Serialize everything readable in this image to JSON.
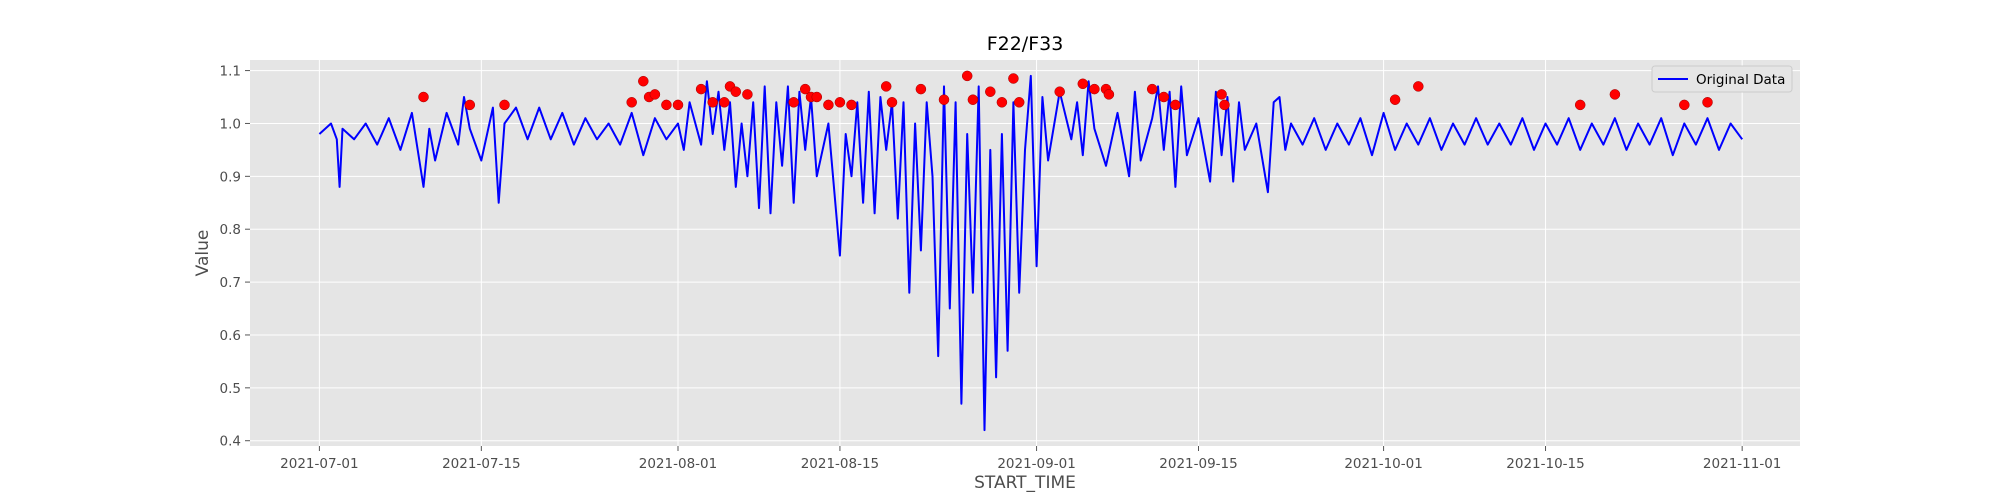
{
  "chart_data": {
    "type": "line",
    "title": "F22/F33",
    "xlabel": "START_TIME",
    "ylabel": "Value",
    "x_ticks": [
      "2021-07-01",
      "2021-07-15",
      "2021-08-01",
      "2021-08-15",
      "2021-09-01",
      "2021-09-15",
      "2021-10-01",
      "2021-10-15",
      "2021-11-01"
    ],
    "y_ticks": [
      "0.4",
      "0.5",
      "0.6",
      "0.7",
      "0.8",
      "0.9",
      "1.0",
      "1.1"
    ],
    "xlim": [
      "2021-06-25",
      "2021-11-06"
    ],
    "ylim": [
      0.39,
      1.12
    ],
    "grid": true,
    "legend_position": "top-right",
    "colors": {
      "line": "#0000ff",
      "marker": "#ff0000",
      "plot_bg": "#e5e5e5",
      "grid": "#ffffff"
    },
    "series": [
      {
        "name": "Original Data",
        "kind": "line",
        "points": [
          [
            "2021-07-01",
            0.98
          ],
          [
            "2021-07-02",
            1.0
          ],
          [
            "2021-07-02T12",
            0.97
          ],
          [
            "2021-07-02T18",
            0.88
          ],
          [
            "2021-07-03",
            0.99
          ],
          [
            "2021-07-04",
            0.97
          ],
          [
            "2021-07-05",
            1.0
          ],
          [
            "2021-07-06",
            0.96
          ],
          [
            "2021-07-07",
            1.01
          ],
          [
            "2021-07-08",
            0.95
          ],
          [
            "2021-07-09",
            1.02
          ],
          [
            "2021-07-10",
            0.88
          ],
          [
            "2021-07-10T12",
            0.99
          ],
          [
            "2021-07-11",
            0.93
          ],
          [
            "2021-07-12",
            1.02
          ],
          [
            "2021-07-13",
            0.96
          ],
          [
            "2021-07-13T12",
            1.05
          ],
          [
            "2021-07-14",
            0.99
          ],
          [
            "2021-07-15",
            0.93
          ],
          [
            "2021-07-16",
            1.03
          ],
          [
            "2021-07-16T12",
            0.85
          ],
          [
            "2021-07-17",
            1.0
          ],
          [
            "2021-07-18",
            1.03
          ],
          [
            "2021-07-19",
            0.97
          ],
          [
            "2021-07-20",
            1.03
          ],
          [
            "2021-07-21",
            0.97
          ],
          [
            "2021-07-22",
            1.02
          ],
          [
            "2021-07-23",
            0.96
          ],
          [
            "2021-07-24",
            1.01
          ],
          [
            "2021-07-25",
            0.97
          ],
          [
            "2021-07-26",
            1.0
          ],
          [
            "2021-07-27",
            0.96
          ],
          [
            "2021-07-28",
            1.02
          ],
          [
            "2021-07-29",
            0.94
          ],
          [
            "2021-07-30",
            1.01
          ],
          [
            "2021-07-31",
            0.97
          ],
          [
            "2021-08-01",
            1.0
          ],
          [
            "2021-08-01T12",
            0.95
          ],
          [
            "2021-08-02",
            1.04
          ],
          [
            "2021-08-03",
            0.96
          ],
          [
            "2021-08-03T12",
            1.08
          ],
          [
            "2021-08-04",
            0.98
          ],
          [
            "2021-08-04T12",
            1.06
          ],
          [
            "2021-08-05",
            0.95
          ],
          [
            "2021-08-05T12",
            1.04
          ],
          [
            "2021-08-06",
            0.88
          ],
          [
            "2021-08-06T12",
            1.0
          ],
          [
            "2021-08-07",
            0.9
          ],
          [
            "2021-08-07T12",
            1.04
          ],
          [
            "2021-08-08",
            0.84
          ],
          [
            "2021-08-08T12",
            1.07
          ],
          [
            "2021-08-09",
            0.83
          ],
          [
            "2021-08-09T12",
            1.04
          ],
          [
            "2021-08-10",
            0.92
          ],
          [
            "2021-08-10T12",
            1.07
          ],
          [
            "2021-08-11",
            0.85
          ],
          [
            "2021-08-11T12",
            1.06
          ],
          [
            "2021-08-12",
            0.95
          ],
          [
            "2021-08-12T12",
            1.05
          ],
          [
            "2021-08-13",
            0.9
          ],
          [
            "2021-08-14",
            1.0
          ],
          [
            "2021-08-15",
            0.75
          ],
          [
            "2021-08-15T12",
            0.98
          ],
          [
            "2021-08-16",
            0.9
          ],
          [
            "2021-08-16T12",
            1.04
          ],
          [
            "2021-08-17",
            0.85
          ],
          [
            "2021-08-17T12",
            1.06
          ],
          [
            "2021-08-18",
            0.83
          ],
          [
            "2021-08-18T12",
            1.05
          ],
          [
            "2021-08-19",
            0.95
          ],
          [
            "2021-08-19T12",
            1.04
          ],
          [
            "2021-08-20",
            0.82
          ],
          [
            "2021-08-20T12",
            1.04
          ],
          [
            "2021-08-21",
            0.68
          ],
          [
            "2021-08-21T12",
            1.0
          ],
          [
            "2021-08-22",
            0.76
          ],
          [
            "2021-08-22T12",
            1.04
          ],
          [
            "2021-08-23",
            0.9
          ],
          [
            "2021-08-23T12",
            0.56
          ],
          [
            "2021-08-24",
            1.07
          ],
          [
            "2021-08-24T12",
            0.65
          ],
          [
            "2021-08-25",
            1.04
          ],
          [
            "2021-08-25T12",
            0.47
          ],
          [
            "2021-08-26",
            0.98
          ],
          [
            "2021-08-26T12",
            0.68
          ],
          [
            "2021-08-27",
            1.07
          ],
          [
            "2021-08-27T12",
            0.42
          ],
          [
            "2021-08-28",
            0.95
          ],
          [
            "2021-08-28T12",
            0.52
          ],
          [
            "2021-08-29",
            0.98
          ],
          [
            "2021-08-29T12",
            0.57
          ],
          [
            "2021-08-30",
            1.04
          ],
          [
            "2021-08-30T12",
            0.68
          ],
          [
            "2021-08-31",
            0.95
          ],
          [
            "2021-08-31T12",
            1.09
          ],
          [
            "2021-09-01",
            0.73
          ],
          [
            "2021-09-01T12",
            1.05
          ],
          [
            "2021-09-02",
            0.93
          ],
          [
            "2021-09-03",
            1.06
          ],
          [
            "2021-09-04",
            0.97
          ],
          [
            "2021-09-04T12",
            1.04
          ],
          [
            "2021-09-05",
            0.94
          ],
          [
            "2021-09-05T12",
            1.08
          ],
          [
            "2021-09-06",
            0.99
          ],
          [
            "2021-09-07",
            0.92
          ],
          [
            "2021-09-08",
            1.02
          ],
          [
            "2021-09-09",
            0.9
          ],
          [
            "2021-09-09T12",
            1.06
          ],
          [
            "2021-09-10",
            0.93
          ],
          [
            "2021-09-11",
            1.01
          ],
          [
            "2021-09-11T12",
            1.07
          ],
          [
            "2021-09-12",
            0.95
          ],
          [
            "2021-09-12T12",
            1.06
          ],
          [
            "2021-09-13",
            0.88
          ],
          [
            "2021-09-13T12",
            1.07
          ],
          [
            "2021-09-14",
            0.94
          ],
          [
            "2021-09-15",
            1.01
          ],
          [
            "2021-09-16",
            0.89
          ],
          [
            "2021-09-16T12",
            1.06
          ],
          [
            "2021-09-17",
            0.94
          ],
          [
            "2021-09-17T12",
            1.05
          ],
          [
            "2021-09-18",
            0.89
          ],
          [
            "2021-09-18T12",
            1.04
          ],
          [
            "2021-09-19",
            0.95
          ],
          [
            "2021-09-20",
            1.0
          ],
          [
            "2021-09-21",
            0.87
          ],
          [
            "2021-09-21T12",
            1.04
          ],
          [
            "2021-09-22",
            1.05
          ],
          [
            "2021-09-22T12",
            0.95
          ],
          [
            "2021-09-23",
            1.0
          ],
          [
            "2021-09-24",
            0.96
          ],
          [
            "2021-09-25",
            1.01
          ],
          [
            "2021-09-26",
            0.95
          ],
          [
            "2021-09-27",
            1.0
          ],
          [
            "2021-09-28",
            0.96
          ],
          [
            "2021-09-29",
            1.01
          ],
          [
            "2021-09-30",
            0.94
          ],
          [
            "2021-10-01",
            1.02
          ],
          [
            "2021-10-02",
            0.95
          ],
          [
            "2021-10-03",
            1.0
          ],
          [
            "2021-10-04",
            0.96
          ],
          [
            "2021-10-05",
            1.01
          ],
          [
            "2021-10-06",
            0.95
          ],
          [
            "2021-10-07",
            1.0
          ],
          [
            "2021-10-08",
            0.96
          ],
          [
            "2021-10-09",
            1.01
          ],
          [
            "2021-10-10",
            0.96
          ],
          [
            "2021-10-11",
            1.0
          ],
          [
            "2021-10-12",
            0.96
          ],
          [
            "2021-10-13",
            1.01
          ],
          [
            "2021-10-14",
            0.95
          ],
          [
            "2021-10-15",
            1.0
          ],
          [
            "2021-10-16",
            0.96
          ],
          [
            "2021-10-17",
            1.01
          ],
          [
            "2021-10-18",
            0.95
          ],
          [
            "2021-10-19",
            1.0
          ],
          [
            "2021-10-20",
            0.96
          ],
          [
            "2021-10-21",
            1.01
          ],
          [
            "2021-10-22",
            0.95
          ],
          [
            "2021-10-23",
            1.0
          ],
          [
            "2021-10-24",
            0.96
          ],
          [
            "2021-10-25",
            1.01
          ],
          [
            "2021-10-26",
            0.94
          ],
          [
            "2021-10-27",
            1.0
          ],
          [
            "2021-10-28",
            0.96
          ],
          [
            "2021-10-29",
            1.01
          ],
          [
            "2021-10-30",
            0.95
          ],
          [
            "2021-10-31",
            1.0
          ],
          [
            "2021-11-01",
            0.97
          ]
        ]
      },
      {
        "kind": "scatter",
        "points": [
          [
            "2021-07-10",
            1.05
          ],
          [
            "2021-07-14",
            1.035
          ],
          [
            "2021-07-17",
            1.035
          ],
          [
            "2021-07-28",
            1.04
          ],
          [
            "2021-07-29",
            1.08
          ],
          [
            "2021-07-29T12",
            1.05
          ],
          [
            "2021-07-30",
            1.055
          ],
          [
            "2021-07-31",
            1.035
          ],
          [
            "2021-08-01",
            1.035
          ],
          [
            "2021-08-03",
            1.065
          ],
          [
            "2021-08-04",
            1.04
          ],
          [
            "2021-08-05",
            1.04
          ],
          [
            "2021-08-05T12",
            1.07
          ],
          [
            "2021-08-06",
            1.06
          ],
          [
            "2021-08-07",
            1.055
          ],
          [
            "2021-08-11",
            1.04
          ],
          [
            "2021-08-12",
            1.065
          ],
          [
            "2021-08-12T12",
            1.05
          ],
          [
            "2021-08-13",
            1.05
          ],
          [
            "2021-08-14",
            1.035
          ],
          [
            "2021-08-15",
            1.04
          ],
          [
            "2021-08-16",
            1.035
          ],
          [
            "2021-08-19",
            1.07
          ],
          [
            "2021-08-19T12",
            1.04
          ],
          [
            "2021-08-22",
            1.065
          ],
          [
            "2021-08-24",
            1.045
          ],
          [
            "2021-08-26",
            1.09
          ],
          [
            "2021-08-26T12",
            1.045
          ],
          [
            "2021-08-28",
            1.06
          ],
          [
            "2021-08-29",
            1.04
          ],
          [
            "2021-08-30",
            1.085
          ],
          [
            "2021-08-30T12",
            1.04
          ],
          [
            "2021-09-03",
            1.06
          ],
          [
            "2021-09-05",
            1.075
          ],
          [
            "2021-09-06",
            1.065
          ],
          [
            "2021-09-07",
            1.065
          ],
          [
            "2021-09-07T06",
            1.055
          ],
          [
            "2021-09-11",
            1.065
          ],
          [
            "2021-09-12",
            1.05
          ],
          [
            "2021-09-13",
            1.035
          ],
          [
            "2021-09-17",
            1.055
          ],
          [
            "2021-09-17T06",
            1.035
          ],
          [
            "2021-10-02",
            1.045
          ],
          [
            "2021-10-04",
            1.07
          ],
          [
            "2021-10-18",
            1.035
          ],
          [
            "2021-10-21",
            1.055
          ],
          [
            "2021-10-27",
            1.035
          ],
          [
            "2021-10-29",
            1.04
          ]
        ]
      }
    ]
  }
}
